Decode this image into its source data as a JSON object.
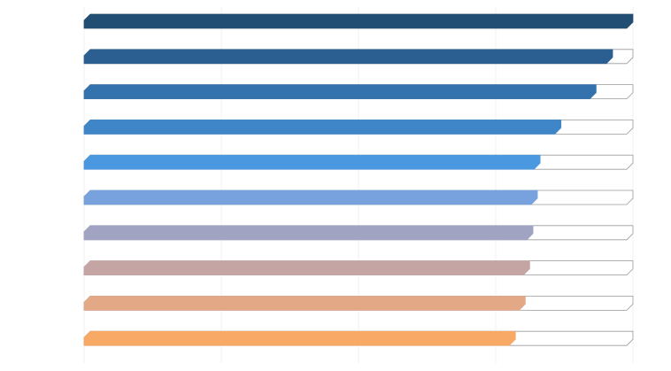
{
  "chart_data": {
    "type": "bar",
    "orientation": "horizontal",
    "style": "progress-bars with clipped corners",
    "grid": true,
    "xlim": [
      0,
      100
    ],
    "values": [
      100,
      96.3,
      93.3,
      86.9,
      83.1,
      82.6,
      81.8,
      81.2,
      80.4,
      78.6
    ],
    "colors": [
      "#234e73",
      "#2b5f91",
      "#3372ac",
      "#3e86c8",
      "#4a98e0",
      "#77a2dd",
      "#a0a3c2",
      "#c4a5a4",
      "#e3a886",
      "#f7a965"
    ],
    "track_color": "#ffffff",
    "track_border": "#9a9a9a"
  }
}
